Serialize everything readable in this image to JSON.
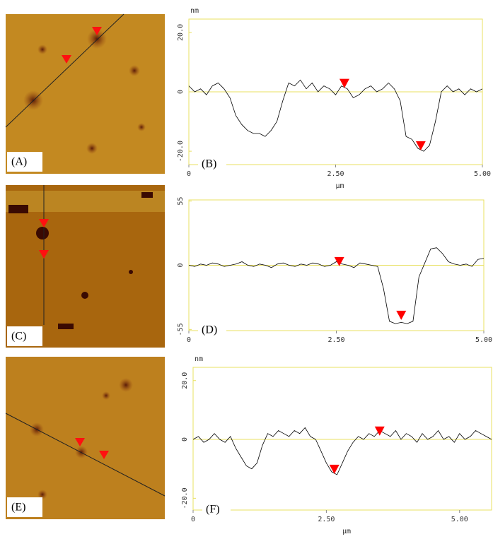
{
  "images": [
    {
      "label": "(A)"
    },
    {
      "label": "(C)"
    },
    {
      "label": "(E)"
    }
  ],
  "chart_data": [
    {
      "type": "line",
      "panel_label": "(B)",
      "ylabel": "nm",
      "xlabel": "µm",
      "x": [
        0,
        0.1,
        0.2,
        0.3,
        0.4,
        0.5,
        0.6,
        0.7,
        0.8,
        0.9,
        1.0,
        1.1,
        1.2,
        1.3,
        1.4,
        1.5,
        1.6,
        1.7,
        1.8,
        1.9,
        2.0,
        2.1,
        2.2,
        2.3,
        2.4,
        2.5,
        2.6,
        2.7,
        2.8,
        2.9,
        3.0,
        3.1,
        3.2,
        3.3,
        3.4,
        3.5,
        3.6,
        3.7,
        3.8,
        3.9,
        4.0,
        4.1,
        4.2,
        4.3,
        4.4,
        4.5,
        4.6,
        4.7,
        4.8,
        4.9,
        5.0
      ],
      "values": [
        2,
        0,
        1,
        -1,
        2,
        3,
        1,
        -2,
        -8,
        -11,
        -13,
        -14,
        -14,
        -15,
        -13,
        -10,
        -3,
        3,
        2,
        4,
        1,
        3,
        0,
        2,
        1,
        -1,
        2,
        1,
        -2,
        -1,
        1,
        2,
        0,
        1,
        3,
        1,
        -3,
        -15,
        -16,
        -19,
        -20,
        -18,
        -10,
        0,
        2,
        0,
        1,
        -1,
        1,
        0,
        1
      ],
      "color": "#000000",
      "cursors": {
        "x": [
          2.65,
          3.95
        ],
        "y": [
          2,
          -19
        ],
        "color": "#ff0000"
      },
      "xlim": [
        0,
        5.0
      ],
      "ylim": [
        -24.5,
        24.5
      ],
      "xticks": [
        0,
        {
          "value": 2.5,
          "label": "2.50"
        },
        {
          "value": 5,
          "label": "5.00"
        }
      ],
      "yticks": [
        {
          "value": 20,
          "label": "20.0"
        },
        0,
        {
          "value": -20,
          "label": "-20.0"
        }
      ]
    },
    {
      "type": "line",
      "panel_label": "(D)",
      "x": [
        0,
        0.1,
        0.2,
        0.3,
        0.4,
        0.5,
        0.6,
        0.7,
        0.8,
        0.9,
        1.0,
        1.1,
        1.2,
        1.3,
        1.4,
        1.5,
        1.6,
        1.7,
        1.8,
        1.9,
        2.0,
        2.1,
        2.2,
        2.3,
        2.4,
        2.5,
        2.6,
        2.7,
        2.8,
        2.9,
        3.0,
        3.1,
        3.2,
        3.3,
        3.4,
        3.5,
        3.6,
        3.7,
        3.8,
        3.9,
        4.0,
        4.1,
        4.2,
        4.3,
        4.4,
        4.5,
        4.6,
        4.7,
        4.8,
        4.9,
        5.0
      ],
      "values": [
        0,
        -1,
        1,
        0,
        2,
        1,
        -1,
        0,
        1,
        3,
        0,
        -1,
        1,
        0,
        -2,
        1,
        2,
        0,
        -1,
        1,
        0,
        2,
        1,
        -1,
        0,
        3,
        1,
        0,
        -2,
        2,
        1,
        0,
        -1,
        -20,
        -48,
        -50,
        -49,
        -50,
        -48,
        -10,
        2,
        14,
        15,
        10,
        3,
        1,
        0,
        1,
        -1,
        5,
        6
      ],
      "color": "#000000",
      "cursors": {
        "x": [
          2.55,
          3.6
        ],
        "y": [
          1,
          -45
        ],
        "color": "#ff0000"
      },
      "xlim": [
        0,
        5.0
      ],
      "ylim": [
        -56,
        56
      ],
      "xticks": [
        0,
        {
          "value": 2.5,
          "label": "2.50"
        },
        {
          "value": 5,
          "label": "5.00"
        }
      ],
      "yticks": [
        55,
        0,
        -55
      ]
    },
    {
      "type": "line",
      "panel_label": "(F)",
      "ylabel": "nm",
      "xlabel": "µm",
      "x": [
        0,
        0.1,
        0.2,
        0.3,
        0.4,
        0.5,
        0.6,
        0.7,
        0.8,
        0.9,
        1.0,
        1.1,
        1.2,
        1.3,
        1.4,
        1.5,
        1.6,
        1.7,
        1.8,
        1.9,
        2.0,
        2.1,
        2.2,
        2.3,
        2.4,
        2.5,
        2.6,
        2.7,
        2.8,
        2.9,
        3.0,
        3.1,
        3.2,
        3.3,
        3.4,
        3.5,
        3.6,
        3.7,
        3.8,
        3.9,
        4.0,
        4.1,
        4.2,
        4.3,
        4.4,
        4.5,
        4.6,
        4.7,
        4.8,
        4.9,
        5.0,
        5.1,
        5.2,
        5.3,
        5.4,
        5.5,
        5.6
      ],
      "values": [
        0,
        1,
        -1,
        0,
        2,
        0,
        -1,
        1,
        -3,
        -6,
        -9,
        -10,
        -8,
        -2,
        2,
        1,
        3,
        2,
        1,
        3,
        2,
        4,
        1,
        0,
        -4,
        -8,
        -11,
        -12,
        -8,
        -4,
        -1,
        1,
        0,
        2,
        1,
        3,
        2,
        1,
        3,
        0,
        2,
        1,
        -1,
        2,
        0,
        1,
        3,
        0,
        1,
        -1,
        2,
        0,
        1,
        3,
        2,
        1,
        0
      ],
      "color": "#000000",
      "cursors": {
        "x": [
          2.65,
          3.5
        ],
        "y": [
          -11,
          2
        ],
        "color": "#ff0000"
      },
      "xlim": [
        0,
        5.6
      ],
      "ylim": [
        -24,
        24.5
      ],
      "xticks": [
        0,
        {
          "value": 2.5,
          "label": "2.50"
        },
        {
          "value": 5,
          "label": "5.00"
        }
      ],
      "yticks": [
        {
          "value": 20,
          "label": "20.0"
        },
        0,
        {
          "value": -20,
          "label": "-20.0"
        }
      ]
    }
  ]
}
